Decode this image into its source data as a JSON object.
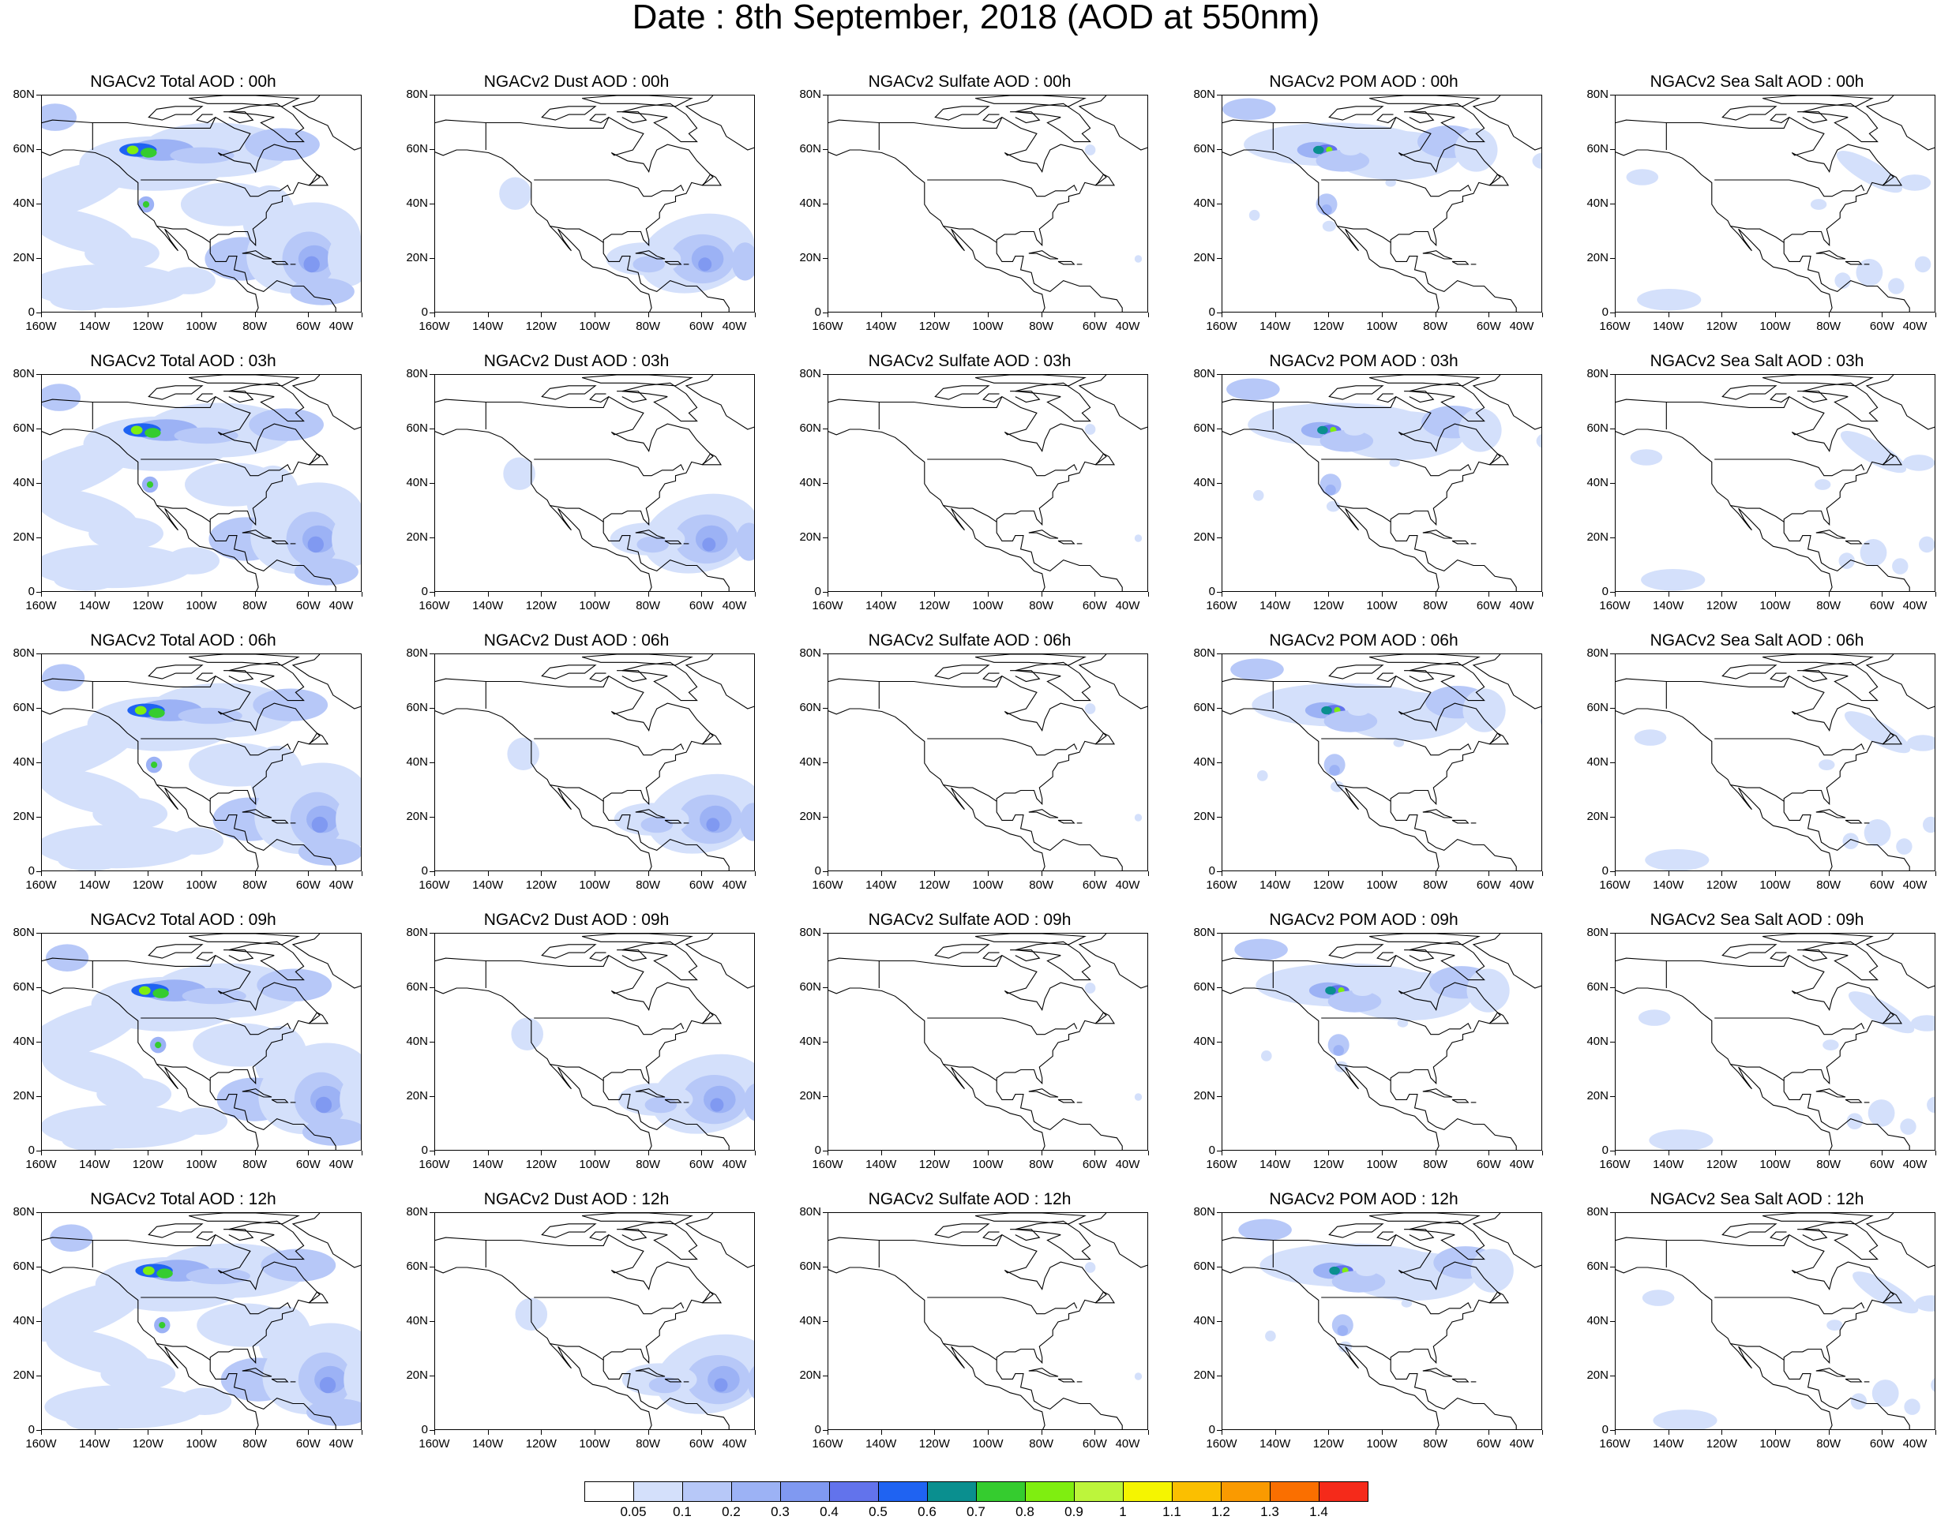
{
  "title": "Date : 8th September, 2018 (AOD at 550nm)",
  "columns": [
    {
      "type": "total",
      "label": "NGACv2 Total AOD"
    },
    {
      "type": "dust",
      "label": "NGACv2 Dust AOD"
    },
    {
      "type": "sulfate",
      "label": "NGACv2 Sulfate AOD"
    },
    {
      "type": "pom",
      "label": "NGACv2 POM AOD"
    },
    {
      "type": "seasalt",
      "label": "NGACv2 Sea Salt AOD"
    }
  ],
  "panel_titles": [
    [
      "NGACv2 Total AOD : 00h",
      "NGACv2 Dust AOD : 00h",
      "NGACv2 Sulfate AOD : 00h",
      "NGACv2 POM AOD : 00h",
      "NGACv2 Sea Salt AOD : 00h"
    ],
    [
      "NGACv2 Total AOD : 03h",
      "NGACv2 Dust AOD : 03h",
      "NGACv2 Sulfate AOD : 03h",
      "NGACv2 POM AOD : 03h",
      "NGACv2 Sea Salt AOD : 03h"
    ],
    [
      "NGACv2 Total AOD : 06h",
      "NGACv2 Dust AOD : 06h",
      "NGACv2 Sulfate AOD : 06h",
      "NGACv2 POM AOD : 06h",
      "NGACv2 Sea Salt AOD : 06h"
    ],
    [
      "NGACv2 Total AOD : 09h",
      "NGACv2 Dust AOD : 09h",
      "NGACv2 Sulfate AOD : 09h",
      "NGACv2 POM AOD : 09h",
      "NGACv2 Sea Salt  AOD : 09h"
    ],
    [
      "NGACv2 Total AOD  : 12h",
      "NGACv2 Dust AOD : 12h",
      "NGACv2 Sulfate AOD : 12h",
      "NGACv2 POM  AOD : 12h",
      "NGACv2 Sea Salt  AOD : 12h"
    ]
  ],
  "axes": {
    "lat_labels": [
      "80N",
      "60N",
      "40N",
      "20N",
      "0"
    ],
    "lon_labels": [
      "160W",
      "140W",
      "120W",
      "100W",
      "80W",
      "60W",
      "40W"
    ],
    "lat_range": [
      0,
      80
    ],
    "lon_range": [
      -160,
      -40
    ]
  },
  "colorbar": {
    "labels": [
      "0.05",
      "0.1",
      "0.2",
      "0.3",
      "0.4",
      "0.5",
      "0.6",
      "0.7",
      "0.8",
      "0.9",
      "1",
      "1.1",
      "1.2",
      "1.3",
      "1.4"
    ],
    "colors": [
      "#ffffff",
      "#d4e0fb",
      "#b7c8f8",
      "#9cb2f5",
      "#8099f1",
      "#6273ec",
      "#1f63f2",
      "#0a8f8f",
      "#35cc2f",
      "#7fee10",
      "#bdf53b",
      "#f5f500",
      "#fbbf00",
      "#fa9a00",
      "#fa6f00",
      "#f52a1a"
    ]
  }
}
